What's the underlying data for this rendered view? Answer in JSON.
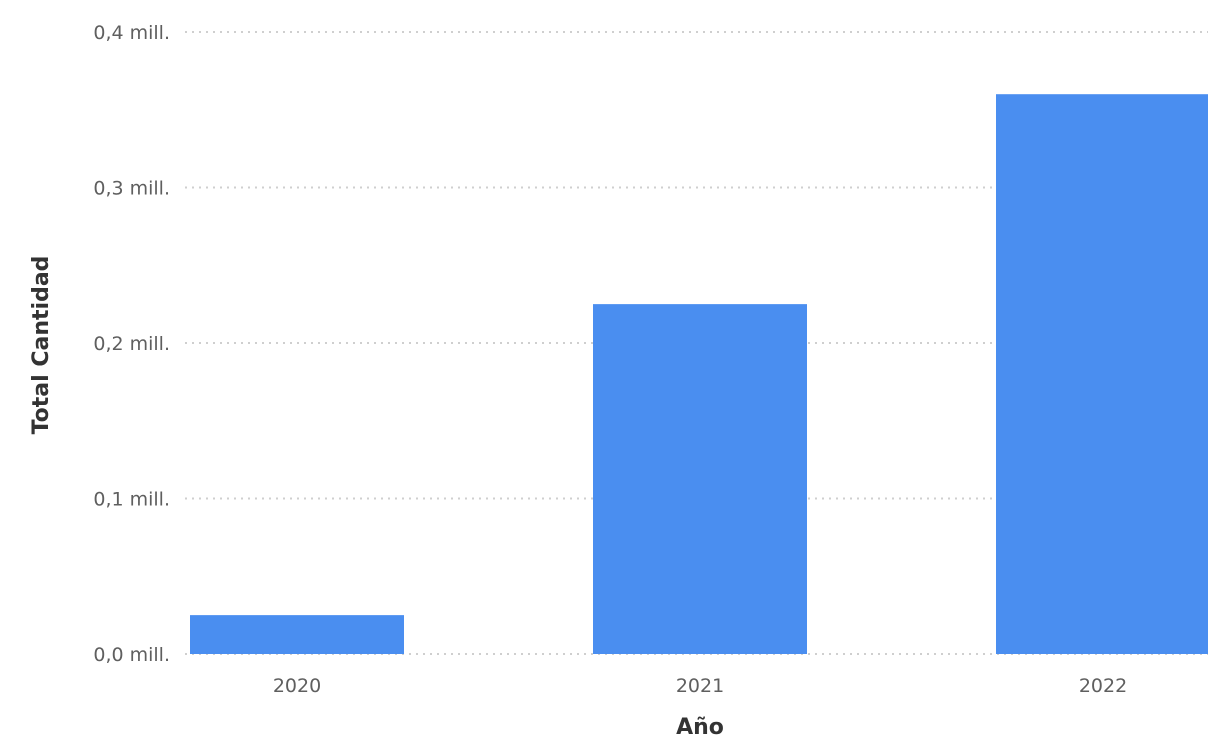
{
  "chart_data": {
    "type": "bar",
    "categories": [
      "2020",
      "2021",
      "2022"
    ],
    "values": [
      0.025,
      0.225,
      0.36
    ],
    "y_ticks": [
      0.0,
      0.1,
      0.2,
      0.3,
      0.4
    ],
    "y_tick_labels": [
      "0,0 mill.",
      "0,1 mill.",
      "0,2 mill.",
      "0,3 mill.",
      "0,4 mill."
    ],
    "ylim": [
      0,
      0.4
    ],
    "xlabel": "Año",
    "ylabel": "Total Cantidad",
    "grid": true,
    "bar_color": "#4a8ef0"
  }
}
